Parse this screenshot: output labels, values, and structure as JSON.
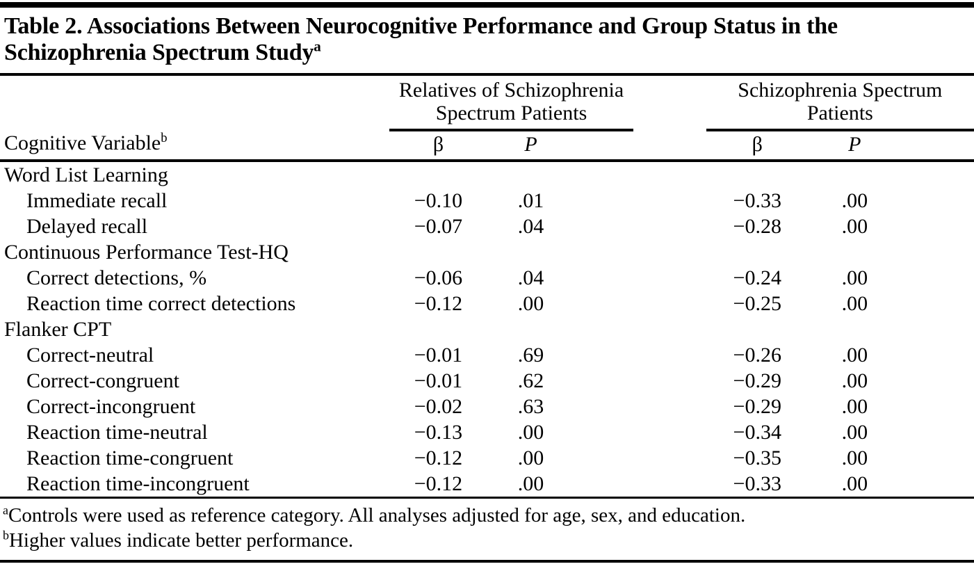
{
  "page": {
    "background_color": "#ffffff",
    "text_color": "#000000",
    "rule_color": "#000000"
  },
  "title": {
    "text": "Table 2. Associations Between Neurocognitive Performance and Group Status in the Schizophrenia Spectrum Study",
    "footnote_marker": "a"
  },
  "table": {
    "row_header": {
      "label": "Cognitive Variable",
      "footnote_marker": "b"
    },
    "groups": [
      {
        "name": "Relatives of Schizophrenia Spectrum Patients",
        "beta_label": "β",
        "p_label": "P"
      },
      {
        "name": "Schizophrenia Spectrum Patients",
        "beta_label": "β",
        "p_label": "P"
      }
    ],
    "rows": [
      {
        "label": "Word List Learning",
        "type": "category",
        "values": [
          "",
          "",
          "",
          ""
        ]
      },
      {
        "label": "Immediate recall",
        "type": "item",
        "values": [
          "−0.10",
          ".01",
          "−0.33",
          ".00"
        ]
      },
      {
        "label": "Delayed recall",
        "type": "item",
        "values": [
          "−0.07",
          ".04",
          "−0.28",
          ".00"
        ]
      },
      {
        "label": "Continuous Performance Test-HQ",
        "type": "category",
        "values": [
          "",
          "",
          "",
          ""
        ]
      },
      {
        "label": "Correct detections, %",
        "type": "item",
        "values": [
          "−0.06",
          ".04",
          "−0.24",
          ".00"
        ]
      },
      {
        "label": "Reaction time correct detections",
        "type": "item",
        "values": [
          "−0.12",
          ".00",
          "−0.25",
          ".00"
        ]
      },
      {
        "label": "Flanker CPT",
        "type": "category",
        "values": [
          "",
          "",
          "",
          ""
        ]
      },
      {
        "label": "Correct-neutral",
        "type": "item",
        "values": [
          "−0.01",
          ".69",
          "−0.26",
          ".00"
        ]
      },
      {
        "label": "Correct-congruent",
        "type": "item",
        "values": [
          "−0.01",
          ".62",
          "−0.29",
          ".00"
        ]
      },
      {
        "label": "Correct-incongruent",
        "type": "item",
        "values": [
          "−0.02",
          ".63",
          "−0.29",
          ".00"
        ]
      },
      {
        "label": "Reaction time-neutral",
        "type": "item",
        "values": [
          "−0.13",
          ".00",
          "−0.34",
          ".00"
        ]
      },
      {
        "label": "Reaction time-congruent",
        "type": "item",
        "values": [
          "−0.12",
          ".00",
          "−0.35",
          ".00"
        ]
      },
      {
        "label": "Reaction time-incongruent",
        "type": "item",
        "values": [
          "−0.12",
          ".00",
          "−0.33",
          ".00"
        ]
      }
    ]
  },
  "footnotes": [
    {
      "marker": "a",
      "text": "Controls were used as reference category. All analyses adjusted for age, sex, and education."
    },
    {
      "marker": "b",
      "text": "Higher values indicate better performance."
    }
  ]
}
